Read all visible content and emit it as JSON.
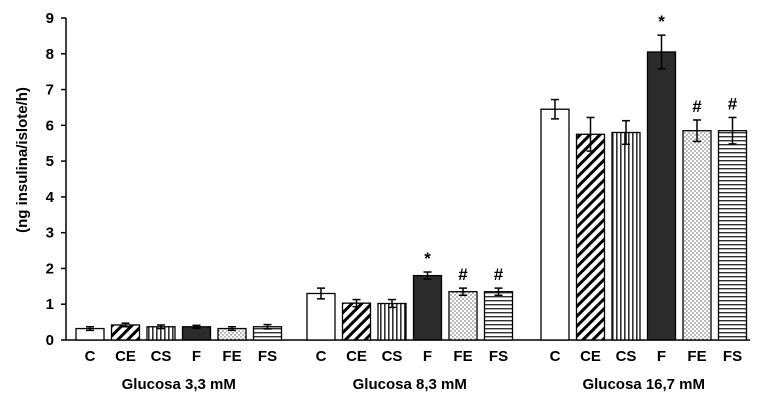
{
  "chart_data": {
    "type": "bar",
    "title": "",
    "xlabel": "",
    "ylabel": "(ng insulina/islote/h)",
    "ylim": [
      0,
      9
    ],
    "yticks": [
      "0",
      "1",
      "2",
      "3",
      "4",
      "5",
      "6",
      "7",
      "8",
      "9"
    ],
    "grid": false,
    "legend": "none",
    "groups": [
      {
        "label": "Glucosa 3,3 mM",
        "bars": [
          {
            "category": "C",
            "value": 0.32,
            "error": 0.05,
            "pattern": "white",
            "annotation": ""
          },
          {
            "category": "CE",
            "value": 0.42,
            "error": 0.05,
            "pattern": "diagonal",
            "annotation": ""
          },
          {
            "category": "CS",
            "value": 0.37,
            "error": 0.05,
            "pattern": "vertical",
            "annotation": ""
          },
          {
            "category": "F",
            "value": 0.37,
            "error": 0.04,
            "pattern": "black",
            "annotation": ""
          },
          {
            "category": "FE",
            "value": 0.32,
            "error": 0.05,
            "pattern": "dotted",
            "annotation": ""
          },
          {
            "category": "FS",
            "value": 0.37,
            "error": 0.06,
            "pattern": "horizontal",
            "annotation": ""
          }
        ]
      },
      {
        "label": "Glucosa 8,3 mM",
        "bars": [
          {
            "category": "C",
            "value": 1.3,
            "error": 0.15,
            "pattern": "white",
            "annotation": ""
          },
          {
            "category": "CE",
            "value": 1.03,
            "error": 0.1,
            "pattern": "diagonal",
            "annotation": ""
          },
          {
            "category": "CS",
            "value": 1.02,
            "error": 0.11,
            "pattern": "vertical",
            "annotation": ""
          },
          {
            "category": "F",
            "value": 1.8,
            "error": 0.1,
            "pattern": "black",
            "annotation": "*"
          },
          {
            "category": "FE",
            "value": 1.35,
            "error": 0.1,
            "pattern": "dotted",
            "annotation": "#"
          },
          {
            "category": "FS",
            "value": 1.35,
            "error": 0.1,
            "pattern": "horizontal",
            "annotation": "#"
          }
        ]
      },
      {
        "label": "Glucosa 16,7 mM",
        "bars": [
          {
            "category": "C",
            "value": 6.45,
            "error": 0.27,
            "pattern": "white",
            "annotation": ""
          },
          {
            "category": "CE",
            "value": 5.75,
            "error": 0.47,
            "pattern": "diagonal",
            "annotation": ""
          },
          {
            "category": "CS",
            "value": 5.8,
            "error": 0.33,
            "pattern": "vertical",
            "annotation": ""
          },
          {
            "category": "F",
            "value": 8.05,
            "error": 0.47,
            "pattern": "black",
            "annotation": "*"
          },
          {
            "category": "FE",
            "value": 5.85,
            "error": 0.3,
            "pattern": "dotted",
            "annotation": "#"
          },
          {
            "category": "FS",
            "value": 5.85,
            "error": 0.37,
            "pattern": "horizontal",
            "annotation": "#"
          }
        ]
      }
    ]
  }
}
